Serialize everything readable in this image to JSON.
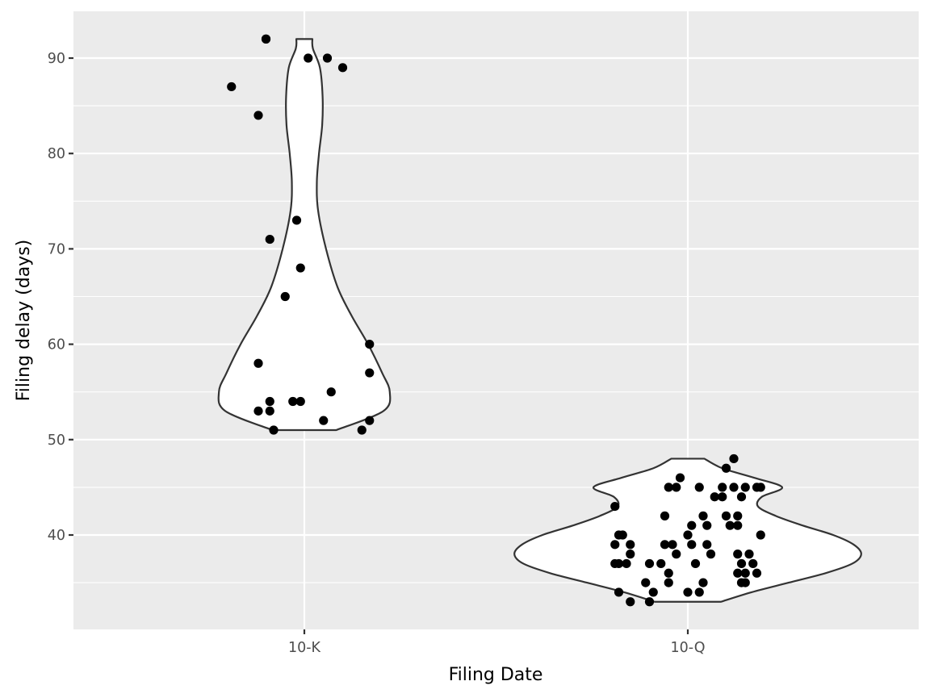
{
  "chart_data": {
    "type": "violin",
    "xlabel": "Filing Date",
    "ylabel": "Filing delay (days)",
    "categories": [
      "10-K",
      "10-Q"
    ],
    "y_ticks": [
      40,
      50,
      60,
      70,
      80,
      90
    ],
    "ylim": [
      30,
      95
    ],
    "grid": true,
    "colors": {
      "panel_background": "#ebebeb",
      "grid": "#ffffff",
      "violin_fill": "#ffffff",
      "violin_outline": "#333333",
      "point": "#000000",
      "tick_label": "#4d4d4d"
    },
    "series": [
      {
        "category": "10-K",
        "violin_profile": [
          {
            "y": 51,
            "w": 0.25
          },
          {
            "y": 53,
            "w": 0.62
          },
          {
            "y": 55,
            "w": 0.67
          },
          {
            "y": 57,
            "w": 0.61
          },
          {
            "y": 60,
            "w": 0.5
          },
          {
            "y": 63,
            "w": 0.37
          },
          {
            "y": 66,
            "w": 0.26
          },
          {
            "y": 70,
            "w": 0.17
          },
          {
            "y": 74,
            "w": 0.108
          },
          {
            "y": 77,
            "w": 0.098
          },
          {
            "y": 80,
            "w": 0.115
          },
          {
            "y": 83,
            "w": 0.14
          },
          {
            "y": 86,
            "w": 0.143
          },
          {
            "y": 89,
            "w": 0.122
          },
          {
            "y": 91,
            "w": 0.067
          },
          {
            "y": 92,
            "w": 0.063
          }
        ],
        "points": [
          {
            "x": -0.1,
            "y": 92
          },
          {
            "x": -0.1,
            "y": 92
          },
          {
            "x": 0.01,
            "y": 90
          },
          {
            "x": 0.06,
            "y": 90
          },
          {
            "x": 0.1,
            "y": 89
          },
          {
            "x": -0.19,
            "y": 87
          },
          {
            "x": -0.12,
            "y": 84
          },
          {
            "x": -0.02,
            "y": 73
          },
          {
            "x": -0.09,
            "y": 71
          },
          {
            "x": -0.01,
            "y": 68
          },
          {
            "x": -0.05,
            "y": 65
          },
          {
            "x": 0.17,
            "y": 60
          },
          {
            "x": -0.12,
            "y": 58
          },
          {
            "x": 0.17,
            "y": 57
          },
          {
            "x": 0.07,
            "y": 55
          },
          {
            "x": -0.09,
            "y": 54
          },
          {
            "x": -0.03,
            "y": 54
          },
          {
            "x": -0.01,
            "y": 54
          },
          {
            "x": -0.12,
            "y": 53
          },
          {
            "x": -0.09,
            "y": 53
          },
          {
            "x": 0.05,
            "y": 52
          },
          {
            "x": 0.17,
            "y": 52
          },
          {
            "x": -0.08,
            "y": 51
          },
          {
            "x": 0.15,
            "y": 51
          }
        ]
      },
      {
        "category": "10-Q",
        "violin_profile": [
          {
            "y": 33,
            "w": 0.26
          },
          {
            "y": 34,
            "w": 0.5
          },
          {
            "y": 35,
            "w": 0.79
          },
          {
            "y": 36,
            "w": 1.08
          },
          {
            "y": 37,
            "w": 1.29
          },
          {
            "y": 38,
            "w": 1.36
          },
          {
            "y": 39,
            "w": 1.3
          },
          {
            "y": 40,
            "w": 1.14
          },
          {
            "y": 41,
            "w": 0.9
          },
          {
            "y": 42,
            "w": 0.69
          },
          {
            "y": 43,
            "w": 0.55
          },
          {
            "y": 44,
            "w": 0.58
          },
          {
            "y": 45,
            "w": 0.74
          },
          {
            "y": 46,
            "w": 0.52
          },
          {
            "y": 47,
            "w": 0.27
          },
          {
            "y": 48,
            "w": 0.13
          }
        ],
        "points": [
          {
            "x": 0.12,
            "y": 48
          },
          {
            "x": 0.1,
            "y": 47
          },
          {
            "x": -0.02,
            "y": 46
          },
          {
            "x": -0.05,
            "y": 45
          },
          {
            "x": -0.03,
            "y": 45
          },
          {
            "x": 0.03,
            "y": 45
          },
          {
            "x": 0.09,
            "y": 45
          },
          {
            "x": 0.12,
            "y": 45
          },
          {
            "x": 0.15,
            "y": 45
          },
          {
            "x": 0.18,
            "y": 45
          },
          {
            "x": 0.19,
            "y": 45
          },
          {
            "x": 0.07,
            "y": 44
          },
          {
            "x": 0.09,
            "y": 44
          },
          {
            "x": 0.14,
            "y": 44
          },
          {
            "x": -0.19,
            "y": 43
          },
          {
            "x": -0.06,
            "y": 42
          },
          {
            "x": 0.04,
            "y": 42
          },
          {
            "x": 0.1,
            "y": 42
          },
          {
            "x": 0.13,
            "y": 42
          },
          {
            "x": 0.01,
            "y": 41
          },
          {
            "x": 0.05,
            "y": 41
          },
          {
            "x": 0.11,
            "y": 41
          },
          {
            "x": 0.13,
            "y": 41
          },
          {
            "x": -0.18,
            "y": 40
          },
          {
            "x": -0.17,
            "y": 40
          },
          {
            "x": 0.0,
            "y": 40
          },
          {
            "x": 0.19,
            "y": 40
          },
          {
            "x": -0.19,
            "y": 39
          },
          {
            "x": -0.15,
            "y": 39
          },
          {
            "x": -0.06,
            "y": 39
          },
          {
            "x": -0.04,
            "y": 39
          },
          {
            "x": 0.01,
            "y": 39
          },
          {
            "x": 0.05,
            "y": 39
          },
          {
            "x": -0.15,
            "y": 38
          },
          {
            "x": -0.03,
            "y": 38
          },
          {
            "x": 0.06,
            "y": 38
          },
          {
            "x": 0.13,
            "y": 38
          },
          {
            "x": 0.16,
            "y": 38
          },
          {
            "x": -0.19,
            "y": 37
          },
          {
            "x": -0.18,
            "y": 37
          },
          {
            "x": -0.16,
            "y": 37
          },
          {
            "x": -0.1,
            "y": 37
          },
          {
            "x": -0.07,
            "y": 37
          },
          {
            "x": 0.02,
            "y": 37
          },
          {
            "x": 0.14,
            "y": 37
          },
          {
            "x": 0.17,
            "y": 37
          },
          {
            "x": -0.05,
            "y": 36
          },
          {
            "x": 0.13,
            "y": 36
          },
          {
            "x": 0.15,
            "y": 36
          },
          {
            "x": 0.18,
            "y": 36
          },
          {
            "x": -0.11,
            "y": 35
          },
          {
            "x": -0.05,
            "y": 35
          },
          {
            "x": 0.04,
            "y": 35
          },
          {
            "x": 0.14,
            "y": 35
          },
          {
            "x": 0.15,
            "y": 35
          },
          {
            "x": -0.18,
            "y": 34
          },
          {
            "x": -0.09,
            "y": 34
          },
          {
            "x": -0.0,
            "y": 34
          },
          {
            "x": 0.03,
            "y": 34
          },
          {
            "x": -0.15,
            "y": 33
          },
          {
            "x": -0.1,
            "y": 33
          }
        ]
      }
    ]
  }
}
